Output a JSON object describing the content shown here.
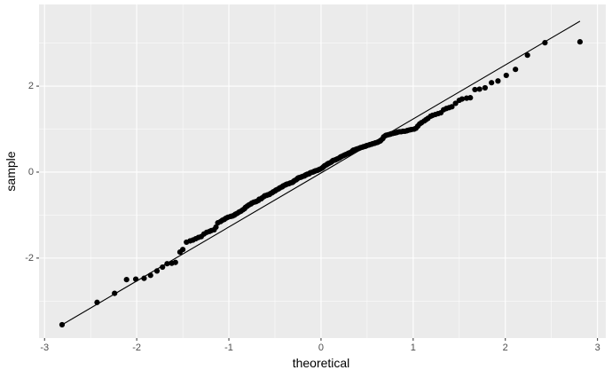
{
  "chart_data": {
    "type": "scatter",
    "x_label": "theoretical",
    "y_label": "sample",
    "x": [
      -2.81,
      -2.43,
      -2.24,
      -2.11,
      -2.01,
      -1.92,
      -1.85,
      -1.78,
      -1.72,
      -1.67,
      -1.62,
      -1.58,
      -1.53,
      -1.5,
      -1.46,
      -1.42,
      -1.39,
      -1.36,
      -1.33,
      -1.3,
      -1.27,
      -1.24,
      -1.21,
      -1.19,
      -1.16,
      -1.14,
      -1.12,
      -1.09,
      -1.07,
      -1.05,
      -1.03,
      -1.01,
      -0.98,
      -0.96,
      -0.94,
      -0.93,
      -0.91,
      -0.89,
      -0.87,
      -0.85,
      -0.83,
      -0.82,
      -0.8,
      -0.78,
      -0.76,
      -0.75,
      -0.73,
      -0.71,
      -0.7,
      -0.68,
      -0.67,
      -0.65,
      -0.64,
      -0.62,
      -0.61,
      -0.59,
      -0.58,
      -0.56,
      -0.55,
      -0.53,
      -0.52,
      -0.5,
      -0.49,
      -0.48,
      -0.46,
      -0.45,
      -0.43,
      -0.42,
      -0.41,
      -0.39,
      -0.38,
      -0.37,
      -0.35,
      -0.34,
      -0.33,
      -0.31,
      -0.3,
      -0.29,
      -0.27,
      -0.26,
      -0.25,
      -0.24,
      -0.22,
      -0.21,
      -0.2,
      -0.18,
      -0.17,
      -0.16,
      -0.15,
      -0.13,
      -0.12,
      -0.11,
      -0.09,
      -0.08,
      -0.07,
      -0.06,
      -0.04,
      -0.03,
      -0.02,
      -0.01,
      0.01,
      0.02,
      0.03,
      0.04,
      0.06,
      0.07,
      0.08,
      0.09,
      0.11,
      0.12,
      0.13,
      0.15,
      0.16,
      0.17,
      0.18,
      0.2,
      0.21,
      0.22,
      0.24,
      0.25,
      0.26,
      0.27,
      0.29,
      0.3,
      0.31,
      0.33,
      0.34,
      0.35,
      0.37,
      0.38,
      0.39,
      0.41,
      0.42,
      0.43,
      0.45,
      0.46,
      0.48,
      0.49,
      0.5,
      0.52,
      0.53,
      0.55,
      0.56,
      0.58,
      0.59,
      0.61,
      0.62,
      0.64,
      0.65,
      0.67,
      0.68,
      0.7,
      0.71,
      0.73,
      0.75,
      0.76,
      0.78,
      0.8,
      0.82,
      0.83,
      0.85,
      0.87,
      0.89,
      0.91,
      0.93,
      0.94,
      0.96,
      0.98,
      1.01,
      1.03,
      1.05,
      1.07,
      1.09,
      1.12,
      1.14,
      1.16,
      1.19,
      1.21,
      1.24,
      1.27,
      1.3,
      1.33,
      1.36,
      1.39,
      1.42,
      1.46,
      1.5,
      1.53,
      1.58,
      1.62,
      1.67,
      1.72,
      1.78,
      1.85,
      1.92,
      2.01,
      2.11,
      2.24,
      2.43,
      2.81
    ],
    "series": [
      {
        "color": "#000000",
        "values": [
          -3.55,
          -3.03,
          -2.82,
          -2.5,
          -2.49,
          -2.47,
          -2.4,
          -2.3,
          -2.21,
          -2.13,
          -2.12,
          -2.1,
          -1.86,
          -1.8,
          -1.63,
          -1.6,
          -1.58,
          -1.55,
          -1.52,
          -1.5,
          -1.44,
          -1.4,
          -1.38,
          -1.36,
          -1.34,
          -1.28,
          -1.18,
          -1.15,
          -1.12,
          -1.1,
          -1.07,
          -1.05,
          -1.03,
          -1.02,
          -1.0,
          -0.98,
          -0.96,
          -0.93,
          -0.91,
          -0.88,
          -0.85,
          -0.82,
          -0.79,
          -0.76,
          -0.74,
          -0.72,
          -0.7,
          -0.69,
          -0.68,
          -0.66,
          -0.63,
          -0.62,
          -0.6,
          -0.57,
          -0.55,
          -0.54,
          -0.53,
          -0.52,
          -0.5,
          -0.48,
          -0.46,
          -0.44,
          -0.42,
          -0.41,
          -0.39,
          -0.37,
          -0.35,
          -0.34,
          -0.32,
          -0.3,
          -0.29,
          -0.28,
          -0.27,
          -0.26,
          -0.25,
          -0.24,
          -0.22,
          -0.2,
          -0.18,
          -0.16,
          -0.14,
          -0.13,
          -0.12,
          -0.11,
          -0.1,
          -0.09,
          -0.07,
          -0.06,
          -0.05,
          -0.04,
          -0.02,
          -0.01,
          0.0,
          0.01,
          0.02,
          0.03,
          0.04,
          0.05,
          0.06,
          0.07,
          0.09,
          0.11,
          0.13,
          0.15,
          0.17,
          0.19,
          0.2,
          0.21,
          0.23,
          0.25,
          0.27,
          0.28,
          0.29,
          0.3,
          0.31,
          0.33,
          0.35,
          0.36,
          0.38,
          0.39,
          0.4,
          0.41,
          0.43,
          0.44,
          0.45,
          0.47,
          0.49,
          0.51,
          0.52,
          0.53,
          0.54,
          0.55,
          0.56,
          0.57,
          0.58,
          0.59,
          0.6,
          0.61,
          0.62,
          0.63,
          0.64,
          0.65,
          0.66,
          0.67,
          0.68,
          0.69,
          0.7,
          0.72,
          0.74,
          0.78,
          0.82,
          0.85,
          0.86,
          0.87,
          0.88,
          0.89,
          0.9,
          0.91,
          0.92,
          0.93,
          0.94,
          0.94,
          0.95,
          0.95,
          0.96,
          0.97,
          0.98,
          0.99,
          1.0,
          1.02,
          1.07,
          1.12,
          1.15,
          1.19,
          1.22,
          1.25,
          1.3,
          1.32,
          1.34,
          1.36,
          1.38,
          1.45,
          1.48,
          1.5,
          1.52,
          1.6,
          1.67,
          1.7,
          1.72,
          1.73,
          1.92,
          1.93,
          1.96,
          2.08,
          2.12,
          2.25,
          2.39,
          2.72,
          3.01,
          3.03
        ]
      }
    ],
    "reference_line": {
      "x": [
        -2.81,
        2.81
      ],
      "values": [
        -3.55,
        3.51
      ],
      "color": "#000000"
    },
    "xlim": [
      -3.06,
      3.09
    ],
    "ylim": [
      -3.86,
      3.9
    ],
    "xticks": [
      -3,
      -2,
      -1,
      0,
      1,
      2,
      3
    ],
    "yticks": [
      -2,
      0,
      2
    ],
    "xminor": [
      -2.5,
      -1.5,
      -0.5,
      0.5,
      1.5,
      2.5
    ],
    "yminor": [
      -3,
      -1,
      1,
      3
    ],
    "grid": true,
    "panel_color": "#ebebeb"
  }
}
